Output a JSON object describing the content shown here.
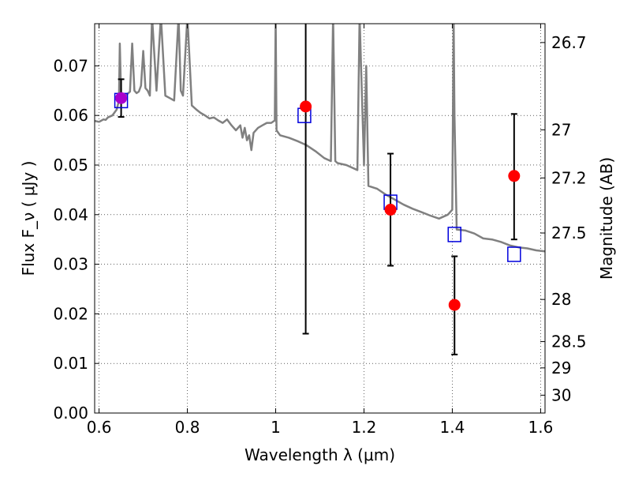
{
  "chart_data": {
    "type": "scatter",
    "xlabel": "Wavelength  λ (μm)",
    "ylabel": "Flux  F_ν  ( μJy )",
    "ylabel_right": "Magnitude (AB)",
    "xlim": [
      0.59,
      1.61
    ],
    "ylim": [
      0.0,
      0.0785
    ],
    "grid": true,
    "xticks": [
      {
        "value": 0.6,
        "label": "0.6"
      },
      {
        "value": 0.8,
        "label": "0.8"
      },
      {
        "value": 1.0,
        "label": "1"
      },
      {
        "value": 1.2,
        "label": "1.2"
      },
      {
        "value": 1.4,
        "label": "1.4"
      },
      {
        "value": 1.6,
        "label": "1.6"
      }
    ],
    "yticks": [
      {
        "value": 0.0,
        "label": "0.00"
      },
      {
        "value": 0.01,
        "label": "0.01"
      },
      {
        "value": 0.02,
        "label": "0.02"
      },
      {
        "value": 0.03,
        "label": "0.03"
      },
      {
        "value": 0.04,
        "label": "0.04"
      },
      {
        "value": 0.05,
        "label": "0.05"
      },
      {
        "value": 0.06,
        "label": "0.06"
      },
      {
        "value": 0.07,
        "label": "0.07"
      }
    ],
    "right_ticks": [
      {
        "flux": 0.0747,
        "label": "26.7"
      },
      {
        "flux": 0.0571,
        "label": "27"
      },
      {
        "flux": 0.0474,
        "label": "27.2"
      },
      {
        "flux": 0.0363,
        "label": "27.5"
      },
      {
        "flux": 0.0229,
        "label": "28"
      },
      {
        "flux": 0.0144,
        "label": "28.5"
      },
      {
        "flux": 0.0091,
        "label": "29"
      },
      {
        "flux": 0.0036,
        "label": "30"
      }
    ],
    "series": [
      {
        "kind": "model_spectrum",
        "color": "#808080",
        "x": [
          0.59,
          0.6,
          0.61,
          0.615,
          0.62,
          0.63,
          0.64,
          0.645,
          0.647,
          0.65,
          0.655,
          0.66,
          0.67,
          0.675,
          0.68,
          0.685,
          0.69,
          0.695,
          0.7,
          0.705,
          0.71,
          0.715,
          0.72,
          0.73,
          0.74,
          0.75,
          0.76,
          0.77,
          0.78,
          0.785,
          0.79,
          0.8,
          0.81,
          0.82,
          0.83,
          0.84,
          0.85,
          0.86,
          0.87,
          0.88,
          0.89,
          0.9,
          0.91,
          0.92,
          0.925,
          0.93,
          0.935,
          0.94,
          0.945,
          0.95,
          0.96,
          0.97,
          0.98,
          0.99,
          0.998,
          1.0,
          1.002,
          1.01,
          1.03,
          1.05,
          1.07,
          1.09,
          1.11,
          1.125,
          1.13,
          1.135,
          1.14,
          1.16,
          1.185,
          1.19,
          1.2,
          1.205,
          1.21,
          1.23,
          1.25,
          1.27,
          1.29,
          1.31,
          1.33,
          1.35,
          1.37,
          1.39,
          1.4,
          1.403,
          1.405,
          1.41,
          1.43,
          1.45,
          1.47,
          1.49,
          1.51,
          1.53,
          1.55,
          1.57,
          1.59,
          1.61
        ],
        "y": [
          0.0589,
          0.0587,
          0.0592,
          0.0591,
          0.0596,
          0.06,
          0.0612,
          0.063,
          0.0745,
          0.0635,
          0.0638,
          0.064,
          0.0648,
          0.0745,
          0.065,
          0.0645,
          0.0648,
          0.066,
          0.073,
          0.0655,
          0.065,
          0.064,
          0.08,
          0.065,
          0.08,
          0.064,
          0.0635,
          0.063,
          0.08,
          0.065,
          0.064,
          0.08,
          0.062,
          0.0612,
          0.0605,
          0.06,
          0.0594,
          0.0596,
          0.059,
          0.0585,
          0.0592,
          0.058,
          0.057,
          0.058,
          0.0555,
          0.0575,
          0.055,
          0.056,
          0.053,
          0.0565,
          0.0575,
          0.058,
          0.0585,
          0.0585,
          0.059,
          0.08,
          0.057,
          0.056,
          0.0555,
          0.0548,
          0.054,
          0.0528,
          0.0514,
          0.0508,
          0.08,
          0.0508,
          0.0504,
          0.05,
          0.049,
          0.08,
          0.05,
          0.07,
          0.0458,
          0.0452,
          0.044,
          0.043,
          0.042,
          0.0412,
          0.0405,
          0.0398,
          0.0392,
          0.04,
          0.041,
          0.08,
          0.06,
          0.037,
          0.0368,
          0.0362,
          0.0352,
          0.035,
          0.0345,
          0.0338,
          0.0334,
          0.0332,
          0.0328,
          0.0326
        ]
      },
      {
        "kind": "model_photometry",
        "marker": "open-square",
        "color": "#0000dd",
        "x": [
          0.65,
          1.065,
          1.26,
          1.405,
          1.54
        ],
        "y": [
          0.063,
          0.06,
          0.0425,
          0.036,
          0.032
        ]
      },
      {
        "kind": "observed",
        "marker": "filled-circle",
        "color": "#ff0000",
        "x": [
          0.65,
          1.068,
          1.26,
          1.405,
          1.54
        ],
        "y": [
          0.0635,
          0.0618,
          0.041,
          0.0218,
          0.0478
        ],
        "err_low": [
          0.0597,
          0.016,
          0.0297,
          0.0118,
          0.035
        ],
        "err_high": [
          0.0673,
          0.081,
          0.0523,
          0.0316,
          0.0603
        ],
        "first_point_color": "#aa00cc"
      }
    ]
  }
}
